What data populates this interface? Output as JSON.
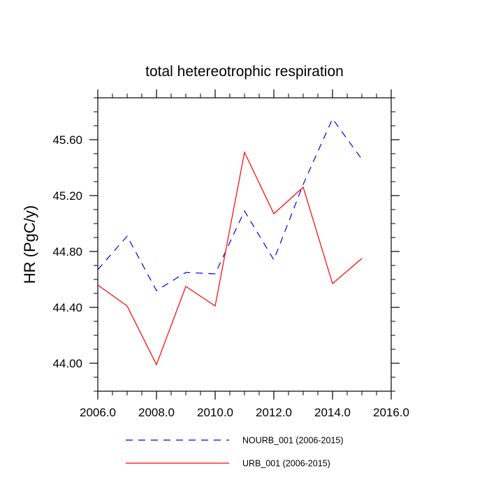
{
  "chart_data": {
    "type": "line",
    "title": "total hetereotrophic respiration",
    "xlabel": "",
    "ylabel": "HR  (PgC/y)",
    "xlim": [
      2006.0,
      2016.0
    ],
    "ylim": [
      43.8,
      45.9
    ],
    "xticks": [
      2006.0,
      2008.0,
      2010.0,
      2012.0,
      2014.0,
      2016.0
    ],
    "xtick_labels": [
      "2006.0",
      "2008.0",
      "2010.0",
      "2012.0",
      "2014.0",
      "2016.0"
    ],
    "yticks": [
      44.0,
      44.4,
      44.8,
      45.2,
      45.6
    ],
    "ytick_labels": [
      "44.00",
      "44.40",
      "44.80",
      "45.20",
      "45.60"
    ],
    "grid": false,
    "legend_position": "bottom",
    "x": [
      2006,
      2007,
      2008,
      2009,
      2010,
      2011,
      2012,
      2013,
      2014,
      2015
    ],
    "series": [
      {
        "name": "NOURB_001 (2006-2015)",
        "color": "#0000ff",
        "style": "dashed",
        "values": [
          44.67,
          44.91,
          44.52,
          44.65,
          44.64,
          45.09,
          44.74,
          45.28,
          45.75,
          45.46
        ]
      },
      {
        "name": "URB_001 (2006-2015)",
        "color": "#ff0000",
        "style": "solid",
        "values": [
          44.56,
          44.41,
          43.99,
          44.55,
          44.41,
          45.51,
          45.07,
          45.26,
          44.57,
          44.75
        ]
      }
    ]
  }
}
